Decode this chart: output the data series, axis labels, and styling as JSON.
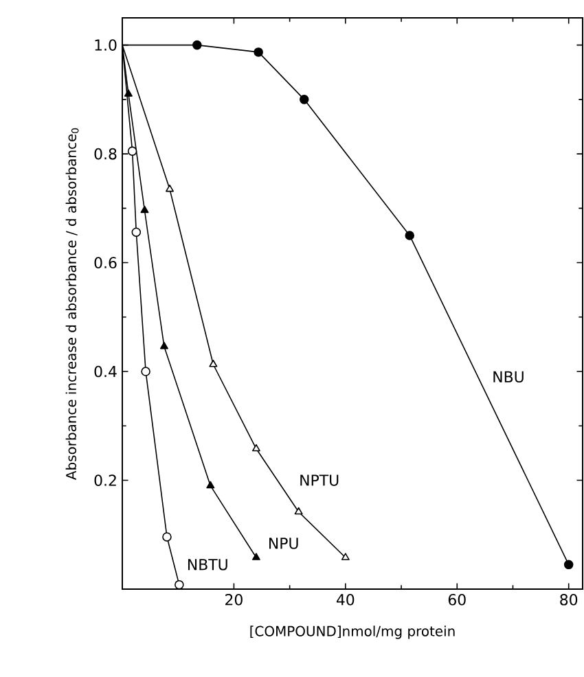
{
  "chart_data": {
    "type": "line",
    "xlabel": "[COMPOUND]nmol/mg protein",
    "ylabel": "Absorbance increase  d absorbance / d absorbance$_{0}$",
    "xlim": [
      0,
      82.5
    ],
    "ylim": [
      0,
      1.05
    ],
    "xticks": [
      20,
      40,
      60,
      80
    ],
    "yticks": [
      0.2,
      0.4,
      0.6,
      0.8,
      {
        "value": 1.0,
        "label": "1.0"
      }
    ],
    "line_style": "solid",
    "series": [
      {
        "color": "#000000",
        "marker": "circle",
        "x": [
          0,
          13.4,
          24.4,
          32.6,
          51.5,
          80
        ],
        "values": [
          1.0,
          1.0,
          0.987,
          0.9,
          0.65,
          0.045
        ]
      },
      {
        "color": "#000000",
        "marker": "triangle",
        "x": [
          0,
          8.5,
          16.3,
          24,
          31.6,
          40
        ],
        "values": [
          1.0,
          0.735,
          0.413,
          0.258,
          0.142,
          0.058
        ]
      },
      {
        "color": "#000000",
        "marker": "triangle",
        "x": [
          0,
          1.1,
          4.0,
          7.5,
          15.8,
          24
        ],
        "values": [
          1.0,
          0.91,
          0.696,
          0.446,
          0.19,
          0.058
        ]
      },
      {
        "color": "#000000",
        "marker": "circle",
        "x": [
          0,
          1.8,
          2.5,
          4.2,
          8.0,
          10.2
        ],
        "values": [
          1.0,
          0.805,
          0.656,
          0.4,
          0.096,
          0.008
        ]
      }
    ],
    "annotations": [
      {
        "text": "NBU",
        "x": 69.2,
        "y": 0.39
      },
      {
        "text": "NPTU",
        "x": 35.3,
        "y": 0.2
      },
      {
        "text": "NPU",
        "x": 28.9,
        "y": 0.084
      },
      {
        "text": "NBTU",
        "x": 15.3,
        "y": 0.045
      }
    ]
  }
}
